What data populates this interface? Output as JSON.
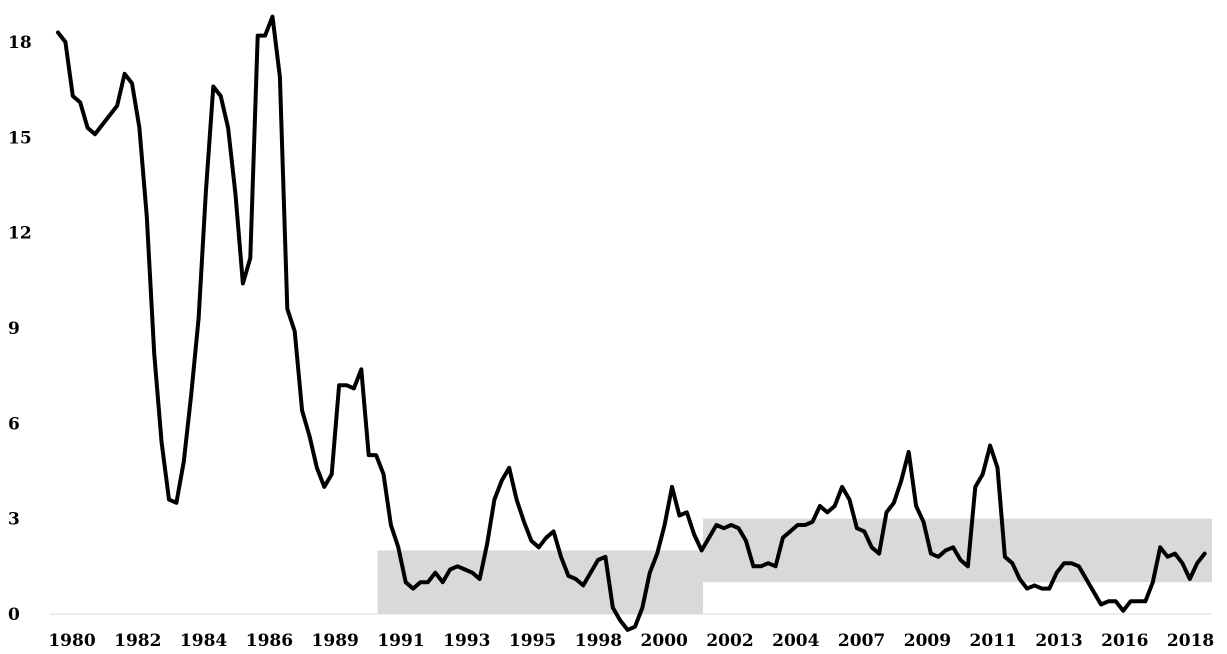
{
  "chart_data": {
    "type": "line",
    "title": "",
    "xlabel": "",
    "ylabel": "",
    "xlim": [
      1980,
      2019
    ],
    "ylim": [
      0,
      18.8
    ],
    "y_ticks": [
      0,
      3,
      6,
      9,
      12,
      15,
      18
    ],
    "x_tick_labels": [
      "1980",
      "1982",
      "1984",
      "1986",
      "1989",
      "1991",
      "1993",
      "1995",
      "1998",
      "2000",
      "2002",
      "2004",
      "2007",
      "2009",
      "2011",
      "2013",
      "2016",
      "2018"
    ],
    "grid": false,
    "legend": "none",
    "colors": {
      "line": "#000000",
      "band": "#d9d9d9"
    },
    "bands": [
      {
        "x_start": 1990.8,
        "x_end": 2001.8,
        "y_low": 0,
        "y_high": 2.0
      },
      {
        "x_start": 2001.8,
        "x_end": 2019.0,
        "y_low": 1.0,
        "y_high": 3.0
      }
    ],
    "series": [
      {
        "x": [
          1980.0,
          1980.25,
          1980.5,
          1980.75,
          1981.0,
          1981.25,
          1981.5,
          1981.75,
          1982.0,
          1982.25,
          1982.5,
          1982.75,
          1983.0,
          1983.25,
          1983.5,
          1983.75,
          1984.0,
          1984.25,
          1984.5,
          1984.75,
          1985.0,
          1985.25,
          1985.5,
          1985.75,
          1986.0,
          1986.25,
          1986.5,
          1986.75,
          1987.0,
          1987.25,
          1987.5,
          1987.75,
          1988.0,
          1988.25,
          1988.5,
          1988.75,
          1989.0,
          1989.25,
          1989.5,
          1989.75,
          1990.0,
          1990.25,
          1990.5,
          1990.75,
          1991.0,
          1991.25,
          1991.5,
          1991.75,
          1992.0,
          1992.25,
          1992.5,
          1992.75,
          1993.0,
          1993.25,
          1993.5,
          1993.75,
          1994.0,
          1994.25,
          1994.5,
          1994.75,
          1995.0,
          1995.25,
          1995.5,
          1995.75,
          1996.0,
          1996.25,
          1996.5,
          1996.75,
          1997.0,
          1997.25,
          1997.5,
          1997.75,
          1998.0,
          1998.25,
          1998.5,
          1998.75,
          1999.0,
          1999.25,
          1999.5,
          1999.75,
          2000.0,
          2000.25,
          2000.5,
          2000.75,
          2001.0,
          2001.25,
          2001.5,
          2001.75,
          2002.0,
          2002.25,
          2002.5,
          2002.75,
          2003.0,
          2003.25,
          2003.5,
          2003.75,
          2004.0,
          2004.25,
          2004.5,
          2004.75,
          2005.0,
          2005.25,
          2005.5,
          2005.75,
          2006.0,
          2006.25,
          2006.5,
          2006.75,
          2007.0,
          2007.25,
          2007.5,
          2007.75,
          2008.0,
          2008.25,
          2008.5,
          2008.75,
          2009.0,
          2009.25,
          2009.5,
          2009.75,
          2010.0,
          2010.25,
          2010.5,
          2010.75,
          2011.0,
          2011.25,
          2011.5,
          2011.75,
          2012.0,
          2012.25,
          2012.5,
          2012.75,
          2013.0,
          2013.25,
          2013.5,
          2013.75,
          2014.0,
          2014.25,
          2014.5,
          2014.75,
          2015.0,
          2015.25,
          2015.5,
          2015.75,
          2016.0,
          2016.25,
          2016.5,
          2016.75,
          2017.0,
          2017.25,
          2017.5,
          2017.75,
          2018.0,
          2018.25,
          2018.5,
          2018.75
        ],
        "y": [
          18.3,
          18.0,
          16.3,
          16.1,
          15.3,
          15.1,
          15.4,
          15.7,
          16.0,
          17.0,
          16.7,
          15.3,
          12.5,
          8.2,
          5.4,
          3.6,
          3.5,
          4.8,
          6.9,
          9.3,
          13.3,
          16.6,
          16.3,
          15.3,
          13.2,
          10.4,
          11.2,
          18.2,
          18.2,
          18.8,
          16.9,
          9.6,
          8.9,
          6.4,
          5.6,
          4.6,
          4.0,
          4.4,
          7.2,
          7.2,
          7.1,
          7.7,
          5.0,
          5.0,
          4.4,
          2.8,
          2.1,
          1.0,
          0.8,
          1.0,
          1.0,
          1.3,
          1.0,
          1.4,
          1.5,
          1.4,
          1.3,
          1.1,
          2.2,
          3.6,
          4.2,
          4.6,
          3.6,
          2.9,
          2.3,
          2.1,
          2.4,
          2.6,
          1.8,
          1.2,
          1.1,
          0.9,
          1.3,
          1.7,
          1.8,
          0.2,
          -0.2,
          -0.5,
          -0.4,
          0.2,
          1.3,
          1.9,
          2.8,
          4.0,
          3.1,
          3.2,
          2.5,
          2.0,
          2.4,
          2.8,
          2.7,
          2.8,
          2.7,
          2.3,
          1.5,
          1.5,
          1.6,
          1.5,
          2.4,
          2.6,
          2.8,
          2.8,
          2.9,
          3.4,
          3.2,
          3.4,
          4.0,
          3.6,
          2.7,
          2.6,
          2.1,
          1.9,
          3.2,
          3.5,
          4.2,
          5.1,
          3.4,
          2.9,
          1.9,
          1.8,
          2.0,
          2.1,
          1.7,
          1.5,
          4.0,
          4.4,
          5.3,
          4.6,
          1.8,
          1.6,
          1.1,
          0.8,
          0.9,
          0.8,
          0.8,
          1.3,
          1.6,
          1.6,
          1.5,
          1.1,
          0.7,
          0.3,
          0.4,
          0.4,
          0.1,
          0.4,
          0.4,
          0.4,
          1.0,
          2.1,
          1.8,
          1.9,
          1.6,
          1.1,
          1.6,
          1.9
        ]
      }
    ]
  }
}
